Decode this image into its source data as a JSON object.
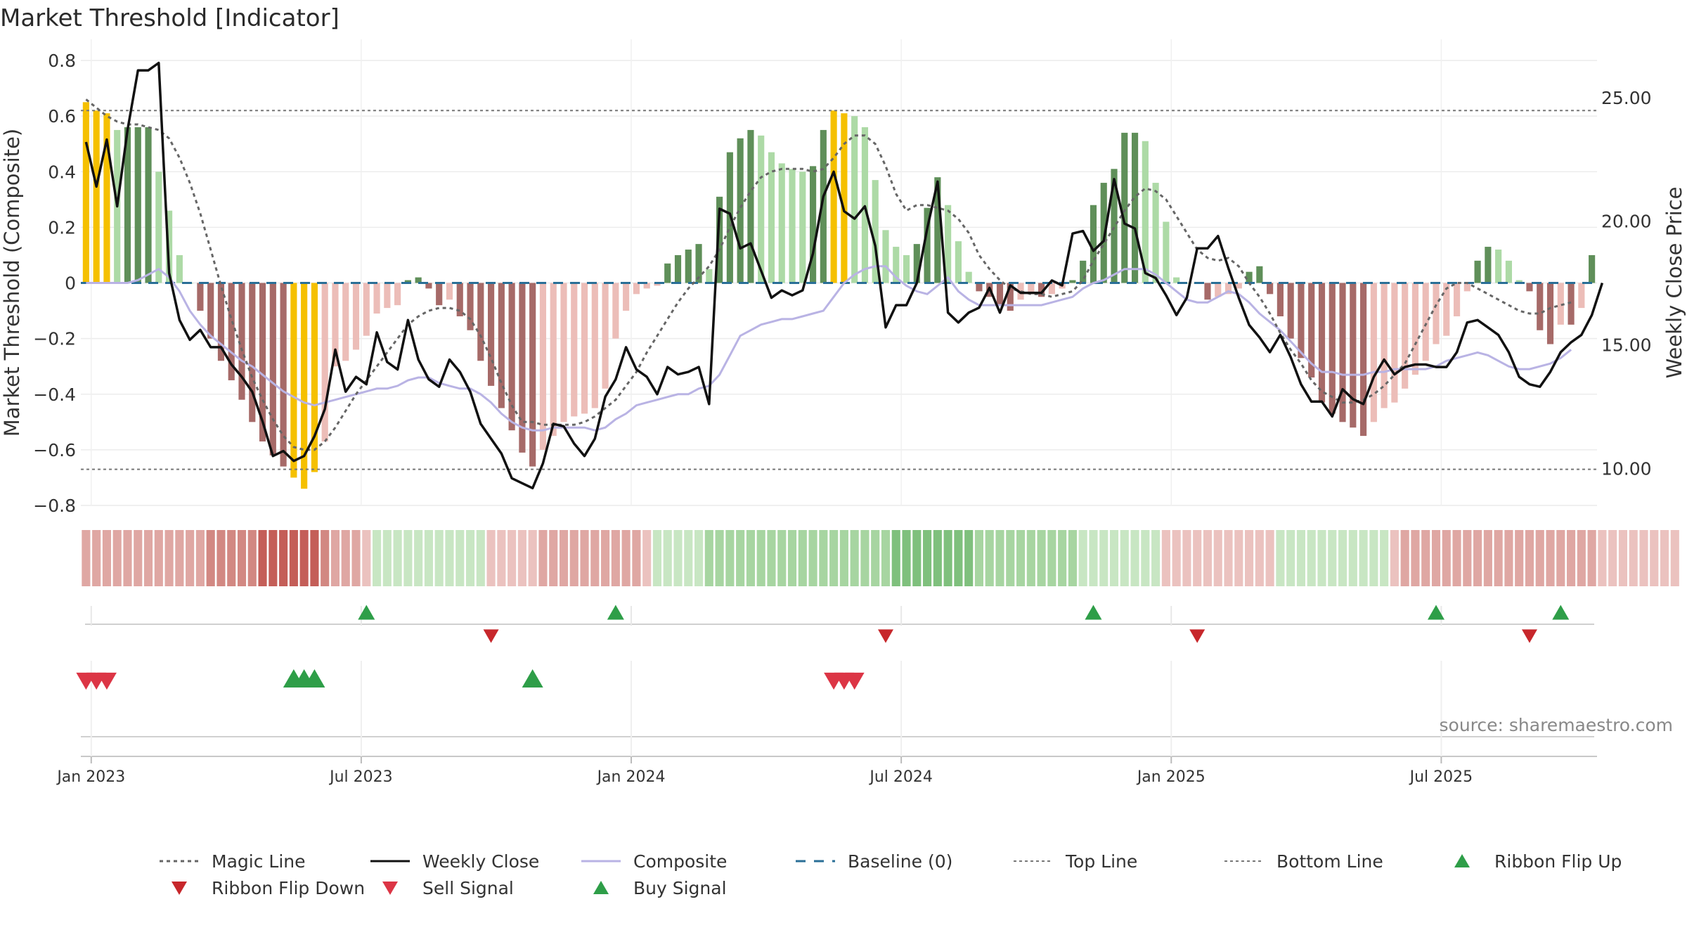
{
  "title": "Market Threshold [Indicator]",
  "chart_data": {
    "type": "bar+line",
    "title": "Market Threshold [Indicator]",
    "ylabel_left": "Market Threshold (Composite)",
    "ylabel_right": "Weekly Close Price",
    "ylim_left": [
      -0.8,
      0.8
    ],
    "yticks_left": [
      0.8,
      0.6,
      0.4,
      0.2,
      0,
      -0.2,
      -0.4,
      -0.6,
      -0.8
    ],
    "ytick_labels_left": [
      "0.8",
      "0.6",
      "0.4",
      "0.2",
      "0",
      "−0.2",
      "−0.4",
      "−0.6",
      "−0.8"
    ],
    "ylim_right": [
      8.5,
      26.5
    ],
    "yticks_right": [
      "25.00",
      "20.00",
      "15.00",
      "10.00"
    ],
    "x_start": "2022-12-26",
    "x_step_days": 7,
    "x_ticks": [
      {
        "label": "Jan 2023",
        "week": 1
      },
      {
        "label": "Jul 2023",
        "week": 27
      },
      {
        "label": "Jan 2024",
        "week": 53
      },
      {
        "label": "Jul 2024",
        "week": 79
      },
      {
        "label": "Jan 2025",
        "week": 105
      },
      {
        "label": "Jul 2025",
        "week": 131
      }
    ],
    "top_line": 0.62,
    "bottom_line": -0.67,
    "source": "source: sharemaestro.com",
    "histogram": [
      0.65,
      0.62,
      0.61,
      0.55,
      0.56,
      0.56,
      0.56,
      0.4,
      0.26,
      0.1,
      0,
      -0.1,
      -0.2,
      -0.28,
      -0.35,
      -0.42,
      -0.5,
      -0.57,
      -0.62,
      -0.66,
      -0.7,
      -0.74,
      -0.68,
      -0.57,
      -0.3,
      -0.28,
      -0.24,
      -0.19,
      -0.11,
      -0.09,
      -0.08,
      0.01,
      0.02,
      -0.02,
      -0.08,
      -0.06,
      -0.12,
      -0.17,
      -0.28,
      -0.37,
      -0.45,
      -0.53,
      -0.61,
      -0.66,
      -0.6,
      -0.55,
      -0.5,
      -0.48,
      -0.47,
      -0.45,
      -0.38,
      -0.2,
      -0.1,
      -0.04,
      -0.02,
      -0.01,
      0.07,
      0.1,
      0.12,
      0.14,
      0.05,
      0.31,
      0.47,
      0.52,
      0.55,
      0.53,
      0.47,
      0.43,
      0.41,
      0.4,
      0.42,
      0.55,
      0.62,
      0.61,
      0.6,
      0.56,
      0.37,
      0.19,
      0.13,
      0.1,
      0.14,
      0.27,
      0.38,
      0.28,
      0.15,
      0.04,
      -0.03,
      -0.05,
      -0.08,
      -0.1,
      -0.06,
      -0.04,
      -0.05,
      -0.04,
      -0.02,
      0.01,
      0.08,
      0.28,
      0.36,
      0.41,
      0.54,
      0.54,
      0.51,
      0.36,
      0.22,
      0.02,
      0,
      0,
      -0.06,
      -0.05,
      -0.04,
      -0.02,
      0.04,
      0.06,
      -0.04,
      -0.12,
      -0.2,
      -0.27,
      -0.34,
      -0.43,
      -0.47,
      -0.5,
      -0.52,
      -0.55,
      -0.5,
      -0.45,
      -0.43,
      -0.38,
      -0.33,
      -0.28,
      -0.22,
      -0.19,
      -0.12,
      -0.03,
      0.08,
      0.13,
      0.12,
      0.08,
      0.01,
      -0.03,
      -0.17,
      -0.22,
      -0.15,
      -0.15,
      -0.09,
      0.1
    ],
    "weekly_close": [
      23.2,
      21.4,
      23.3,
      20.6,
      23.7,
      26.1,
      26.1,
      26.4,
      17.9,
      16.0,
      15.2,
      15.6,
      14.9,
      14.9,
      14.2,
      13.7,
      13.1,
      11.9,
      10.5,
      10.7,
      10.3,
      10.5,
      11.3,
      12.4,
      14.8,
      13.1,
      13.7,
      13.4,
      15.5,
      14.3,
      14.0,
      16.0,
      14.4,
      13.6,
      13.3,
      14.4,
      13.9,
      13.1,
      11.8,
      11.2,
      10.6,
      9.6,
      9.4,
      9.2,
      10.2,
      11.8,
      11.7,
      11.0,
      10.5,
      11.2,
      12.9,
      13.6,
      14.9,
      14.0,
      13.7,
      13.0,
      14.1,
      13.8,
      13.9,
      14.1,
      12.6,
      20.5,
      20.3,
      18.9,
      19.1,
      18.0,
      16.9,
      17.2,
      17.0,
      17.2,
      18.7,
      21.0,
      22.0,
      20.4,
      20.1,
      20.6,
      19.0,
      15.7,
      16.6,
      16.6,
      17.5,
      19.7,
      21.6,
      16.3,
      15.9,
      16.3,
      16.5,
      17.3,
      16.3,
      17.4,
      17.1,
      17.1,
      17.1,
      17.6,
      17.4,
      19.5,
      19.6,
      18.8,
      19.2,
      21.7,
      19.9,
      19.7,
      17.9,
      17.7,
      17.0,
      16.2,
      16.9,
      18.9,
      18.9,
      19.4,
      18.1,
      16.9,
      15.8,
      15.3,
      14.7,
      15.4,
      14.5,
      13.4,
      12.7,
      12.7,
      12.1,
      13.2,
      12.8,
      12.6,
      13.7,
      14.4,
      13.8,
      14.1,
      14.2,
      14.2,
      14.1,
      14.1,
      14.7,
      15.9,
      16.0,
      15.7,
      15.4,
      14.7,
      13.7,
      13.4,
      13.3,
      13.9,
      14.7,
      15.1,
      15.4,
      16.2,
      17.5
    ],
    "composite": [
      0,
      0,
      0,
      0,
      0,
      0.01,
      0.03,
      0.05,
      0.02,
      -0.03,
      -0.1,
      -0.15,
      -0.19,
      -0.22,
      -0.25,
      -0.28,
      -0.3,
      -0.33,
      -0.36,
      -0.39,
      -0.41,
      -0.43,
      -0.44,
      -0.43,
      -0.42,
      -0.41,
      -0.4,
      -0.39,
      -0.38,
      -0.38,
      -0.37,
      -0.35,
      -0.34,
      -0.34,
      -0.36,
      -0.37,
      -0.38,
      -0.38,
      -0.4,
      -0.43,
      -0.47,
      -0.5,
      -0.52,
      -0.53,
      -0.53,
      -0.52,
      -0.52,
      -0.52,
      -0.52,
      -0.53,
      -0.52,
      -0.49,
      -0.47,
      -0.44,
      -0.43,
      -0.42,
      -0.41,
      -0.4,
      -0.4,
      -0.38,
      -0.37,
      -0.33,
      -0.26,
      -0.19,
      -0.17,
      -0.15,
      -0.14,
      -0.13,
      -0.13,
      -0.12,
      -0.11,
      -0.1,
      -0.05,
      0,
      0.03,
      0.05,
      0.06,
      0.06,
      0.02,
      -0.01,
      -0.03,
      -0.04,
      -0.01,
      0.02,
      -0.03,
      -0.06,
      -0.08,
      -0.08,
      -0.08,
      -0.08,
      -0.08,
      -0.08,
      -0.08,
      -0.07,
      -0.06,
      -0.05,
      -0.02,
      0,
      0.01,
      0.03,
      0.05,
      0.05,
      0.05,
      0.03,
      0,
      -0.03,
      -0.06,
      -0.07,
      -0.07,
      -0.05,
      -0.03,
      -0.04,
      -0.07,
      -0.11,
      -0.14,
      -0.17,
      -0.21,
      -0.25,
      -0.29,
      -0.32,
      -0.32,
      -0.33,
      -0.33,
      -0.33,
      -0.32,
      -0.32,
      -0.31,
      -0.31,
      -0.31,
      -0.31,
      -0.3,
      -0.28,
      -0.27,
      -0.26,
      -0.25,
      -0.26,
      -0.28,
      -0.3,
      -0.31,
      -0.31,
      -0.3,
      -0.29,
      -0.27,
      -0.24
    ],
    "magic_line": [
      0.66,
      0.63,
      0.6,
      0.58,
      0.57,
      0.57,
      0.56,
      0.55,
      0.52,
      0.45,
      0.36,
      0.25,
      0.12,
      -0.01,
      -0.13,
      -0.24,
      -0.34,
      -0.42,
      -0.49,
      -0.55,
      -0.59,
      -0.6,
      -0.6,
      -0.57,
      -0.52,
      -0.46,
      -0.4,
      -0.35,
      -0.3,
      -0.25,
      -0.2,
      -0.15,
      -0.12,
      -0.1,
      -0.09,
      -0.09,
      -0.1,
      -0.13,
      -0.19,
      -0.27,
      -0.36,
      -0.44,
      -0.5,
      -0.5,
      -0.51,
      -0.51,
      -0.51,
      -0.51,
      -0.5,
      -0.48,
      -0.45,
      -0.42,
      -0.37,
      -0.32,
      -0.25,
      -0.19,
      -0.13,
      -0.07,
      -0.02,
      0.02,
      0.06,
      0.12,
      0.2,
      0.27,
      0.33,
      0.38,
      0.4,
      0.41,
      0.41,
      0.41,
      0.4,
      0.41,
      0.45,
      0.5,
      0.53,
      0.53,
      0.5,
      0.42,
      0.32,
      0.26,
      0.28,
      0.28,
      0.27,
      0.26,
      0.23,
      0.18,
      0.1,
      0.05,
      0.01,
      -0.02,
      -0.03,
      -0.04,
      -0.04,
      -0.05,
      -0.04,
      -0.03,
      0.01,
      0.08,
      0.14,
      0.2,
      0.26,
      0.31,
      0.34,
      0.33,
      0.3,
      0.24,
      0.18,
      0.12,
      0.09,
      0.08,
      0.09,
      0.06,
      0,
      -0.05,
      -0.11,
      -0.18,
      -0.24,
      -0.29,
      -0.35,
      -0.39,
      -0.41,
      -0.43,
      -0.43,
      -0.42,
      -0.4,
      -0.37,
      -0.33,
      -0.29,
      -0.22,
      -0.15,
      -0.08,
      -0.02,
      0,
      0,
      -0.02,
      -0.04,
      -0.06,
      -0.08,
      -0.1,
      -0.11,
      -0.11,
      -0.09,
      -0.08,
      -0.07
    ],
    "ribbon": [
      -2,
      -2,
      -2,
      -2,
      -2,
      -2,
      -2,
      -2,
      -2,
      -2,
      -2,
      -2,
      -3,
      -3,
      -3,
      -3,
      -3,
      -4,
      -4,
      -4,
      -4,
      -4,
      -4,
      -3,
      -2,
      -2,
      -2,
      -1,
      1,
      1,
      1,
      1,
      1,
      1,
      1,
      1,
      1,
      1,
      1,
      -1,
      -1,
      -1,
      -1,
      -1,
      -2,
      -2,
      -2,
      -2,
      -2,
      -2,
      -2,
      -2,
      -2,
      -2,
      -1,
      1,
      1,
      1,
      1,
      1,
      2,
      2,
      2,
      2,
      2,
      2,
      2,
      2,
      2,
      2,
      2,
      2,
      2,
      2,
      2,
      2,
      2,
      2,
      3,
      3,
      3,
      3,
      3,
      3,
      3,
      3,
      2,
      2,
      2,
      2,
      2,
      2,
      2,
      2,
      2,
      2,
      1,
      1,
      1,
      1,
      1,
      1,
      1,
      1,
      -1,
      -1,
      -1,
      -1,
      -1,
      -1,
      -1,
      -1,
      -1,
      -1,
      -1,
      1,
      1,
      1,
      1,
      1,
      1,
      1,
      1,
      1,
      1,
      1,
      -1,
      -2,
      -2,
      -2,
      -2,
      -2,
      -2,
      -2,
      -2,
      -2,
      -2,
      -2,
      -2,
      -2,
      -2,
      -2,
      -2,
      -2,
      -2,
      -2,
      -1,
      -1,
      -1,
      -1,
      -1,
      -1,
      -1,
      -1
    ],
    "ribbon_flip_up": [
      27,
      51,
      97,
      130,
      142
    ],
    "ribbon_flip_down": [
      39,
      77,
      107,
      139
    ],
    "buy_signals": [
      20,
      21,
      22,
      43
    ],
    "sell_signals": [
      0,
      1,
      2,
      72,
      73,
      74
    ],
    "legend": [
      {
        "label": "Magic Line",
        "symbol": "dotted-gray"
      },
      {
        "label": "Weekly Close",
        "symbol": "solid-black"
      },
      {
        "label": "Composite",
        "symbol": "solid-lavender"
      },
      {
        "label": "Baseline (0)",
        "symbol": "dashed-blue"
      },
      {
        "label": "Top Line",
        "symbol": "dotted-light"
      },
      {
        "label": "Bottom Line",
        "symbol": "dotted-light"
      },
      {
        "label": "Ribbon Flip Up",
        "symbol": "triangle-up-green"
      },
      {
        "label": "Ribbon Flip Down",
        "symbol": "triangle-down-red"
      },
      {
        "label": "Sell Signal",
        "symbol": "triangle-down-redlight"
      },
      {
        "label": "Buy Signal",
        "symbol": "triangle-up-green"
      }
    ]
  },
  "colors": {
    "bar_yellow": "#F5C000",
    "bar_green_dark": "#5F8F59",
    "bar_green_light": "#ADDAA6",
    "bar_red_dark": "#A66A68",
    "bar_red_light": "#ECBDB8",
    "weekly_close": "#111111",
    "composite": "#B9B3E4",
    "magic_line": "#666666",
    "baseline": "#2A6F97",
    "ref_lines": "#777777",
    "flip_up": "#2E9E48",
    "flip_down": "#C7272B",
    "sell": "#DC3545",
    "buy": "#2E9E48"
  }
}
